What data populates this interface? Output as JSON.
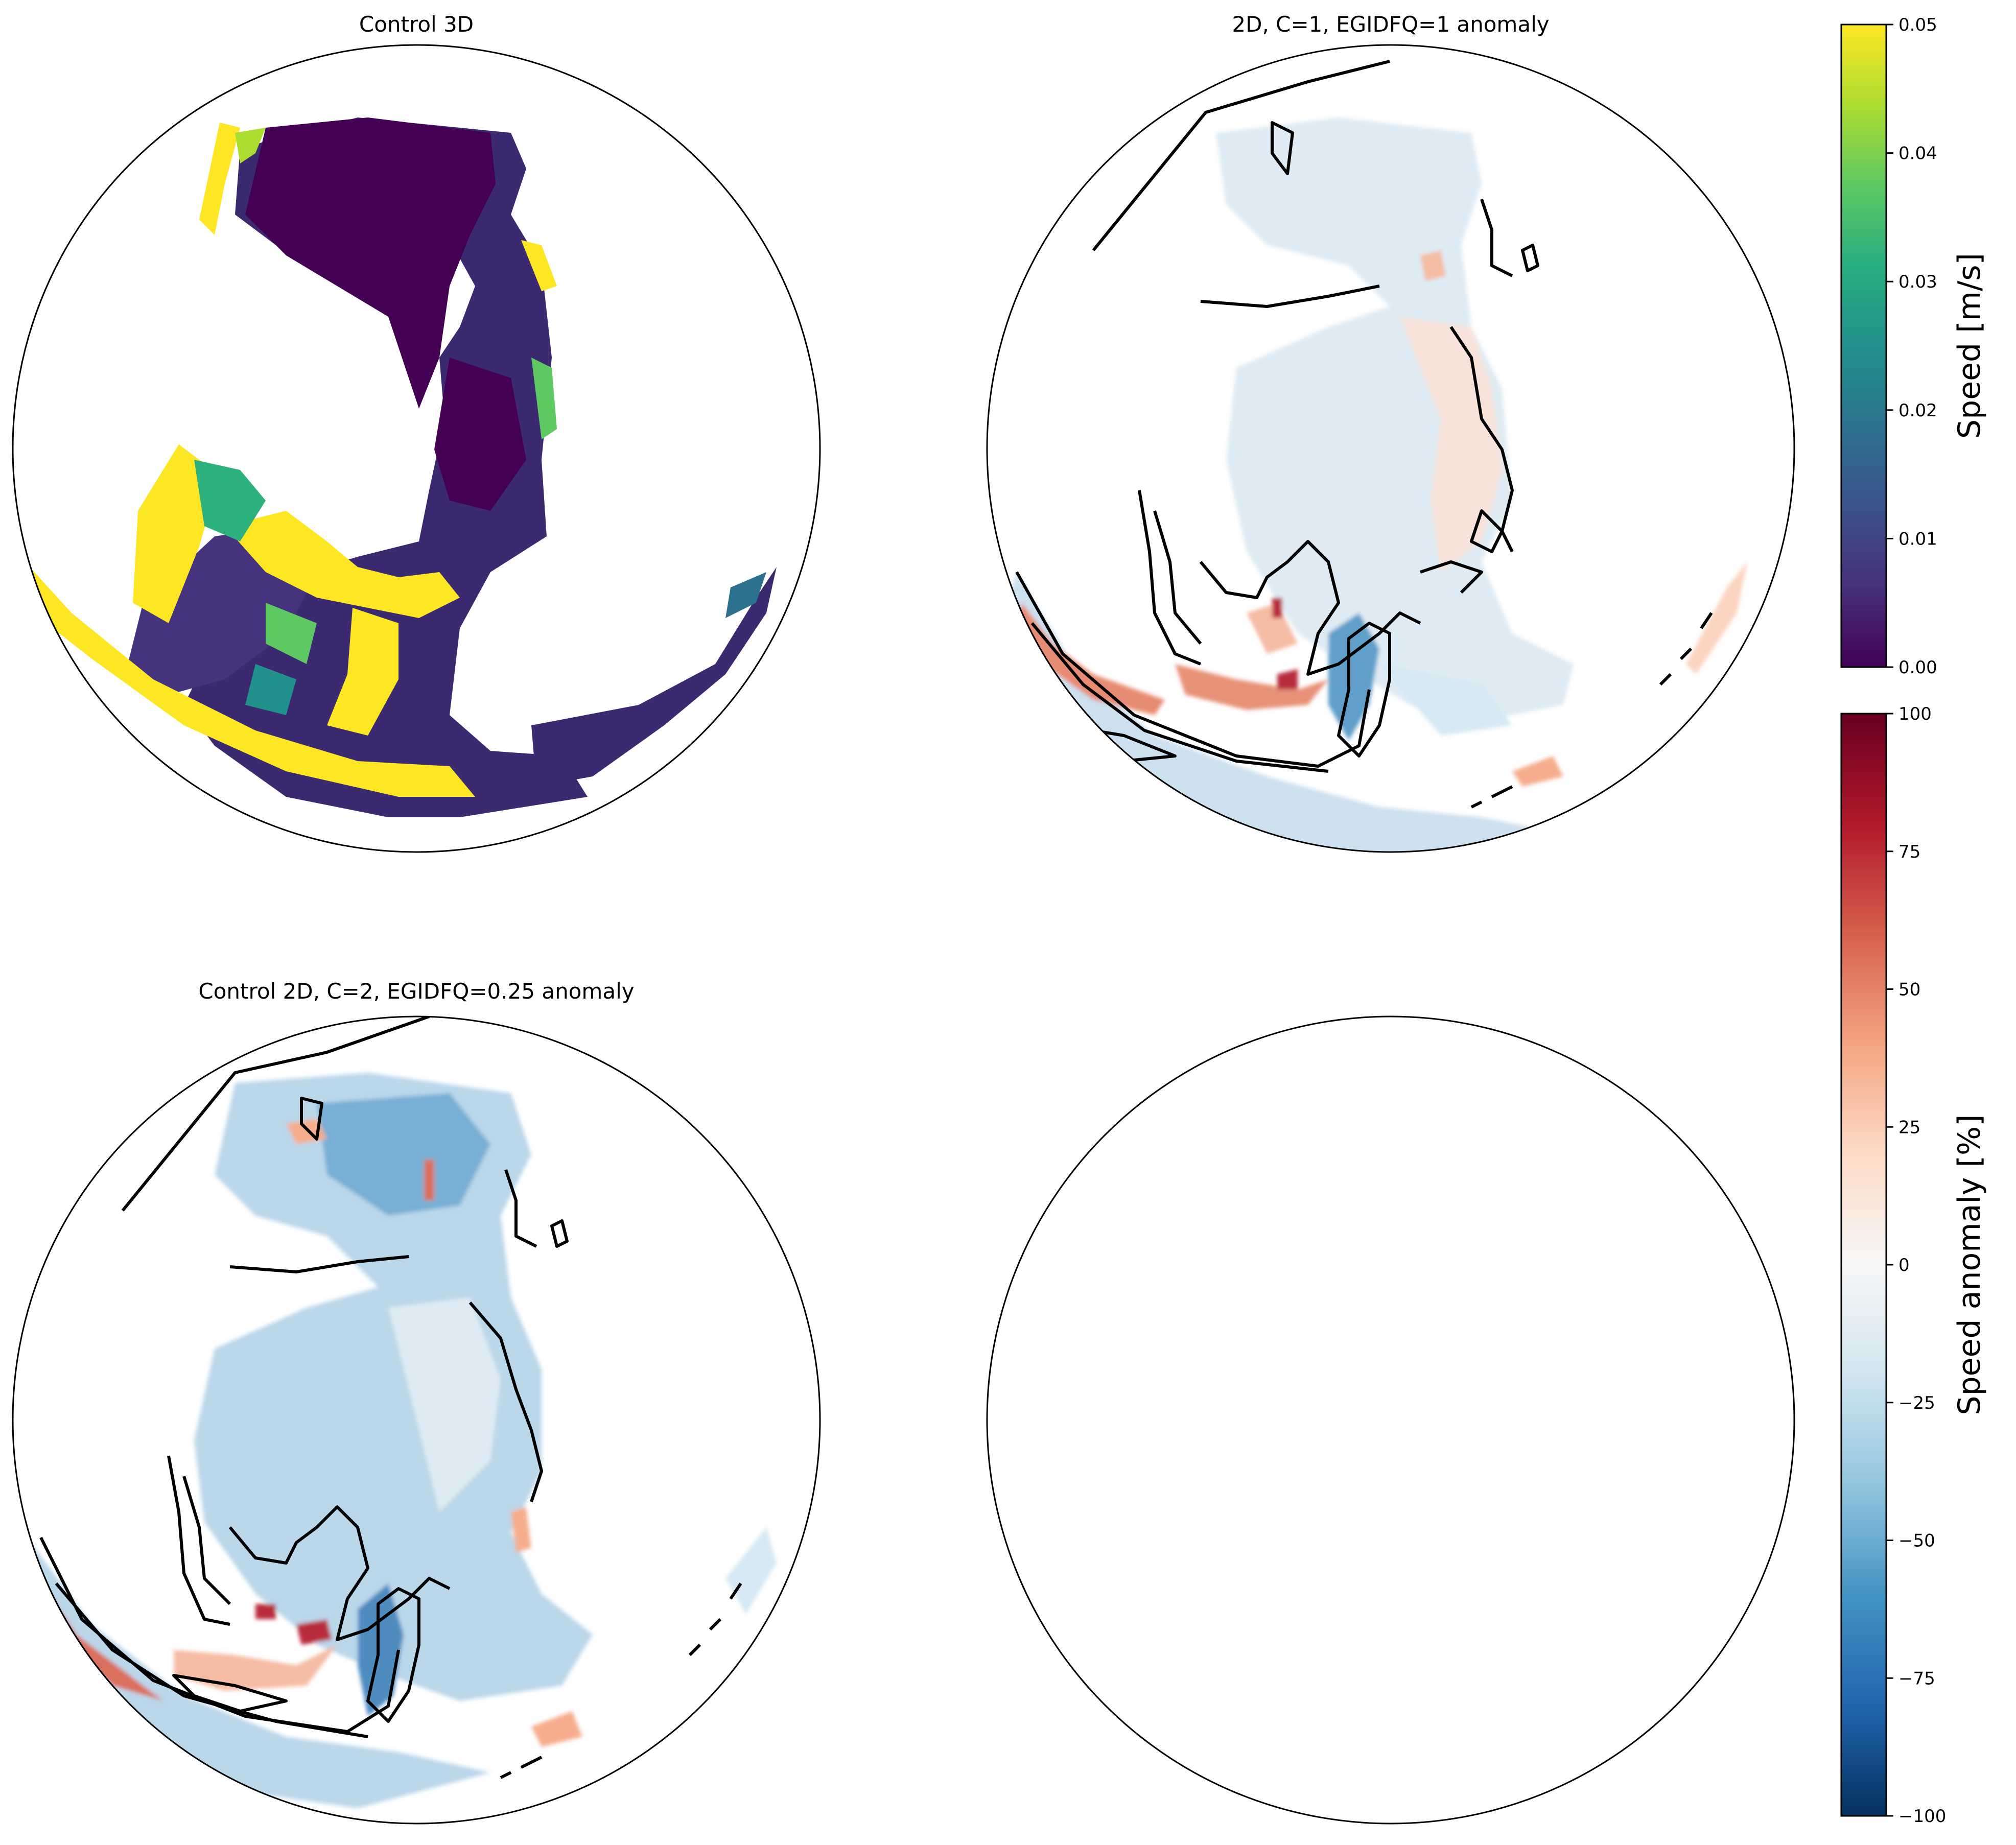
{
  "chart_data": [
    {
      "type": "heatmap",
      "title": "Control 3D",
      "projection": "orthographic",
      "variable": "speed",
      "units": "m/s",
      "colormap": "viridis",
      "colorbar": "speed"
    },
    {
      "type": "heatmap",
      "title": "2D, C=1, EGIDFQ=1 anomaly",
      "projection": "orthographic",
      "variable": "speed anomaly",
      "units": "%",
      "colormap": "RdBu_r",
      "colorbar": "anomaly",
      "contours": true
    },
    {
      "type": "heatmap",
      "title": "Control 2D, C=2, EGIDFQ=0.25 anomaly",
      "projection": "orthographic",
      "variable": "speed anomaly",
      "units": "%",
      "colormap": "RdBu_r",
      "colorbar": "anomaly",
      "contours": true
    },
    {
      "type": "heatmap",
      "title": "",
      "projection": "orthographic",
      "empty": true
    }
  ],
  "colorbars": {
    "speed": {
      "label": "Speed [m/s]",
      "range": [
        0,
        0.05
      ],
      "ticks": [
        "0.00",
        "0.01",
        "0.02",
        "0.03",
        "0.04",
        "0.05"
      ],
      "colors": [
        "#440154",
        "#472f7d",
        "#3b528b",
        "#2c728e",
        "#21918c",
        "#28ae80",
        "#5ec962",
        "#addc30",
        "#fde725"
      ]
    },
    "anomaly": {
      "label": "Speed anomaly [%]",
      "range": [
        -100,
        100
      ],
      "ticks": [
        "−100",
        "−75",
        "−50",
        "−25",
        "0",
        "25",
        "50",
        "75",
        "100"
      ],
      "colors": [
        "#053061",
        "#2166ac",
        "#4393c3",
        "#92c5de",
        "#d1e5f0",
        "#f7f7f7",
        "#fddbc7",
        "#f4a582",
        "#d6604d",
        "#b2182b",
        "#67001f"
      ]
    }
  }
}
